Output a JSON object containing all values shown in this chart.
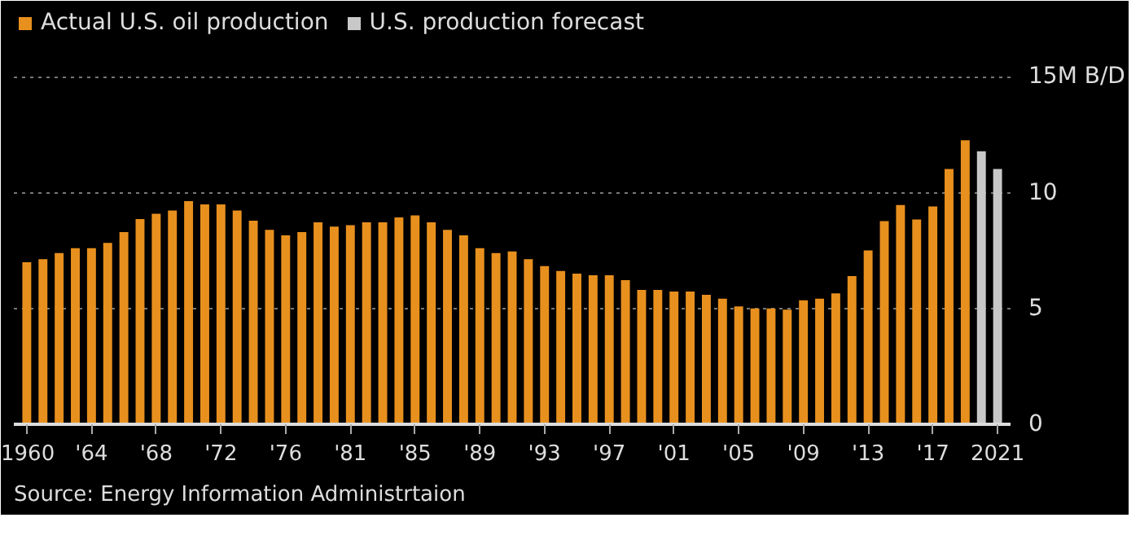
{
  "chart_data": {
    "type": "bar",
    "categories": [
      "1960",
      null,
      null,
      null,
      "'64",
      null,
      null,
      null,
      "'68",
      null,
      null,
      null,
      "'72",
      null,
      null,
      null,
      "'76",
      null,
      null,
      null,
      "'81",
      null,
      null,
      null,
      "'85",
      null,
      null,
      null,
      "'89",
      null,
      null,
      null,
      "'93",
      null,
      null,
      null,
      "'97",
      null,
      null,
      null,
      "'01",
      null,
      null,
      null,
      "'05",
      null,
      null,
      null,
      "'09",
      null,
      null,
      null,
      "'13",
      null,
      null,
      null,
      "'17",
      null,
      null,
      null,
      "2021"
    ],
    "series": [
      {
        "name": "Actual U.S. oil production",
        "color": "#e8901e",
        "values": [
          7.0,
          7.13,
          7.39,
          7.6,
          7.6,
          7.83,
          8.3,
          8.86,
          9.09,
          9.23,
          9.63,
          9.49,
          9.49,
          9.23,
          8.79,
          8.39,
          8.16,
          8.3,
          8.72,
          8.53,
          8.6,
          8.72,
          8.72,
          8.93,
          9.02,
          8.72,
          8.39,
          8.16,
          7.6,
          7.39,
          7.46,
          7.13,
          6.83,
          6.62,
          6.5,
          6.43,
          6.43,
          6.22,
          5.8,
          5.8,
          5.73,
          5.73,
          5.59,
          5.42,
          5.09,
          5.0,
          5.0,
          4.95,
          5.35,
          5.42,
          5.65,
          6.4,
          7.51,
          8.77,
          9.47,
          8.84,
          9.4,
          11.02,
          12.26,
          null,
          null
        ]
      },
      {
        "name": "U.S. production forecast",
        "color": "#c8c8c8",
        "values": [
          null,
          null,
          null,
          null,
          null,
          null,
          null,
          null,
          null,
          null,
          null,
          null,
          null,
          null,
          null,
          null,
          null,
          null,
          null,
          null,
          null,
          null,
          null,
          null,
          null,
          null,
          null,
          null,
          null,
          null,
          null,
          null,
          null,
          null,
          null,
          null,
          null,
          null,
          null,
          null,
          null,
          null,
          null,
          null,
          null,
          null,
          null,
          null,
          null,
          null,
          null,
          null,
          null,
          null,
          null,
          null,
          null,
          null,
          null,
          11.79,
          11.02
        ]
      }
    ],
    "ylim": [
      0,
      18
    ],
    "yticks": [
      0,
      5,
      10,
      {
        "value": 15,
        "label": "15M B/D"
      }
    ],
    "grid": "y",
    "legend": "top left",
    "annotations": [
      "Source: Energy Information Administrtaion"
    ]
  }
}
